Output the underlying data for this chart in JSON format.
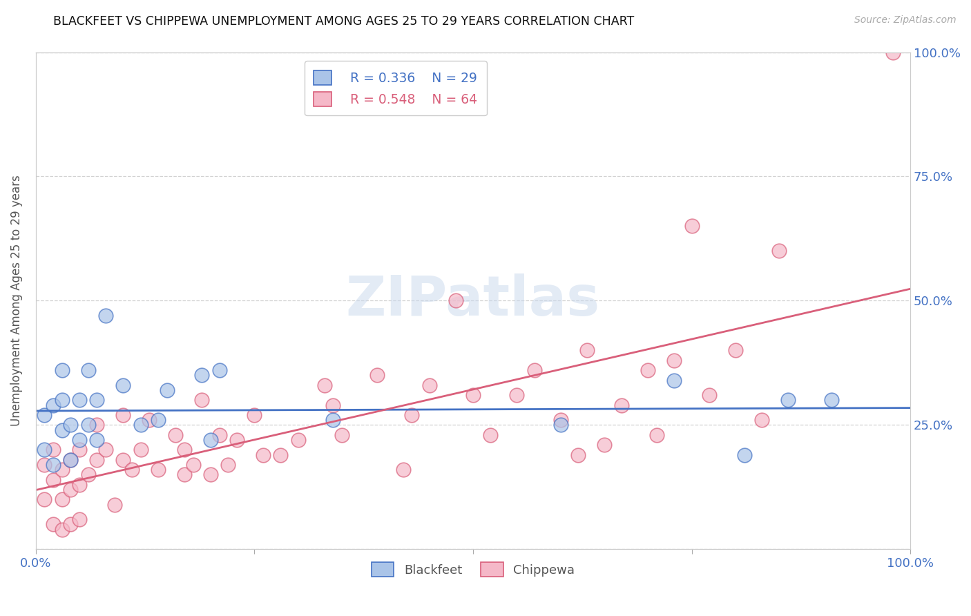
{
  "title": "BLACKFEET VS CHIPPEWA UNEMPLOYMENT AMONG AGES 25 TO 29 YEARS CORRELATION CHART",
  "source": "Source: ZipAtlas.com",
  "ylabel": "Unemployment Among Ages 25 to 29 years",
  "xlim": [
    0,
    1.0
  ],
  "ylim": [
    0,
    1.0
  ],
  "xticks": [
    0.0,
    0.25,
    0.5,
    0.75,
    1.0
  ],
  "yticks": [
    0.0,
    0.25,
    0.5,
    0.75,
    1.0
  ],
  "xticklabels": [
    "0.0%",
    "",
    "",
    "",
    "100.0%"
  ],
  "right_yticklabels": [
    "",
    "25.0%",
    "50.0%",
    "75.0%",
    "100.0%"
  ],
  "blackfeet_R": "0.336",
  "blackfeet_N": "29",
  "chippewa_R": "0.548",
  "chippewa_N": "64",
  "blackfeet_color": "#aac4e8",
  "chippewa_color": "#f5b8c8",
  "blackfeet_line_color": "#4472c4",
  "chippewa_line_color": "#d95f7a",
  "watermark": "ZIPatlas",
  "blackfeet_x": [
    0.01,
    0.01,
    0.02,
    0.02,
    0.03,
    0.03,
    0.03,
    0.04,
    0.04,
    0.05,
    0.05,
    0.06,
    0.06,
    0.07,
    0.07,
    0.08,
    0.1,
    0.12,
    0.14,
    0.15,
    0.19,
    0.2,
    0.21,
    0.34,
    0.6,
    0.73,
    0.81,
    0.86,
    0.91
  ],
  "blackfeet_y": [
    0.2,
    0.27,
    0.17,
    0.29,
    0.24,
    0.3,
    0.36,
    0.18,
    0.25,
    0.22,
    0.3,
    0.25,
    0.36,
    0.22,
    0.3,
    0.47,
    0.33,
    0.25,
    0.26,
    0.32,
    0.35,
    0.22,
    0.36,
    0.26,
    0.25,
    0.34,
    0.19,
    0.3,
    0.3
  ],
  "chippewa_x": [
    0.01,
    0.01,
    0.02,
    0.02,
    0.02,
    0.03,
    0.03,
    0.03,
    0.04,
    0.04,
    0.04,
    0.05,
    0.05,
    0.05,
    0.06,
    0.07,
    0.07,
    0.08,
    0.09,
    0.1,
    0.1,
    0.11,
    0.12,
    0.13,
    0.14,
    0.16,
    0.17,
    0.17,
    0.18,
    0.19,
    0.2,
    0.21,
    0.22,
    0.23,
    0.25,
    0.26,
    0.28,
    0.3,
    0.33,
    0.34,
    0.35,
    0.39,
    0.42,
    0.43,
    0.45,
    0.48,
    0.5,
    0.52,
    0.55,
    0.57,
    0.6,
    0.62,
    0.63,
    0.65,
    0.67,
    0.7,
    0.71,
    0.73,
    0.75,
    0.77,
    0.8,
    0.83,
    0.85,
    0.98
  ],
  "chippewa_y": [
    0.1,
    0.17,
    0.05,
    0.14,
    0.2,
    0.04,
    0.1,
    0.16,
    0.05,
    0.12,
    0.18,
    0.06,
    0.13,
    0.2,
    0.15,
    0.18,
    0.25,
    0.2,
    0.09,
    0.18,
    0.27,
    0.16,
    0.2,
    0.26,
    0.16,
    0.23,
    0.15,
    0.2,
    0.17,
    0.3,
    0.15,
    0.23,
    0.17,
    0.22,
    0.27,
    0.19,
    0.19,
    0.22,
    0.33,
    0.29,
    0.23,
    0.35,
    0.16,
    0.27,
    0.33,
    0.5,
    0.31,
    0.23,
    0.31,
    0.36,
    0.26,
    0.19,
    0.4,
    0.21,
    0.29,
    0.36,
    0.23,
    0.38,
    0.65,
    0.31,
    0.4,
    0.26,
    0.6,
    1.0
  ]
}
